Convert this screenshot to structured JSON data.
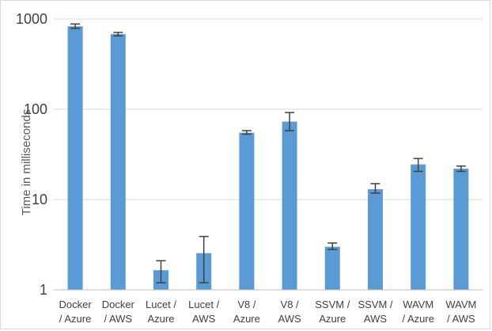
{
  "chart_data": {
    "type": "bar",
    "yscale": "log",
    "ylim": [
      1,
      1000
    ],
    "ylabel": "Time in milliseconds",
    "xlabel": "",
    "title": "",
    "grid": true,
    "yticks": [
      {
        "value": 1,
        "label": "1"
      },
      {
        "value": 10,
        "label": "10"
      },
      {
        "value": 100,
        "label": "100"
      },
      {
        "value": 1000,
        "label": "1000"
      }
    ],
    "bar_color": "#5b9bd5",
    "categories": [
      {
        "line1": "Docker",
        "line2": "/ Azure"
      },
      {
        "line1": "Docker",
        "line2": "/ AWS"
      },
      {
        "line1": "Lucet /",
        "line2": "Azure"
      },
      {
        "line1": "Lucet /",
        "line2": "AWS"
      },
      {
        "line1": "V8 /",
        "line2": "Azure"
      },
      {
        "line1": "V8 /",
        "line2": "AWS"
      },
      {
        "line1": "SSVM /",
        "line2": "Azure"
      },
      {
        "line1": "SSVM /",
        "line2": "AWS"
      },
      {
        "line1": "WAVM",
        "line2": "/ Azure"
      },
      {
        "line1": "WAVM",
        "line2": "/ AWS"
      }
    ],
    "values": [
      830,
      680,
      1.65,
      2.55,
      55,
      73,
      3.0,
      13.0,
      24.5,
      22.0
    ],
    "error_low": [
      790,
      650,
      1.2,
      1.2,
      53,
      58,
      2.8,
      11.8,
      20.5,
      20.5
    ],
    "error_high": [
      880,
      710,
      2.1,
      3.9,
      58,
      92,
      3.3,
      15.0,
      28.5,
      23.5
    ]
  }
}
